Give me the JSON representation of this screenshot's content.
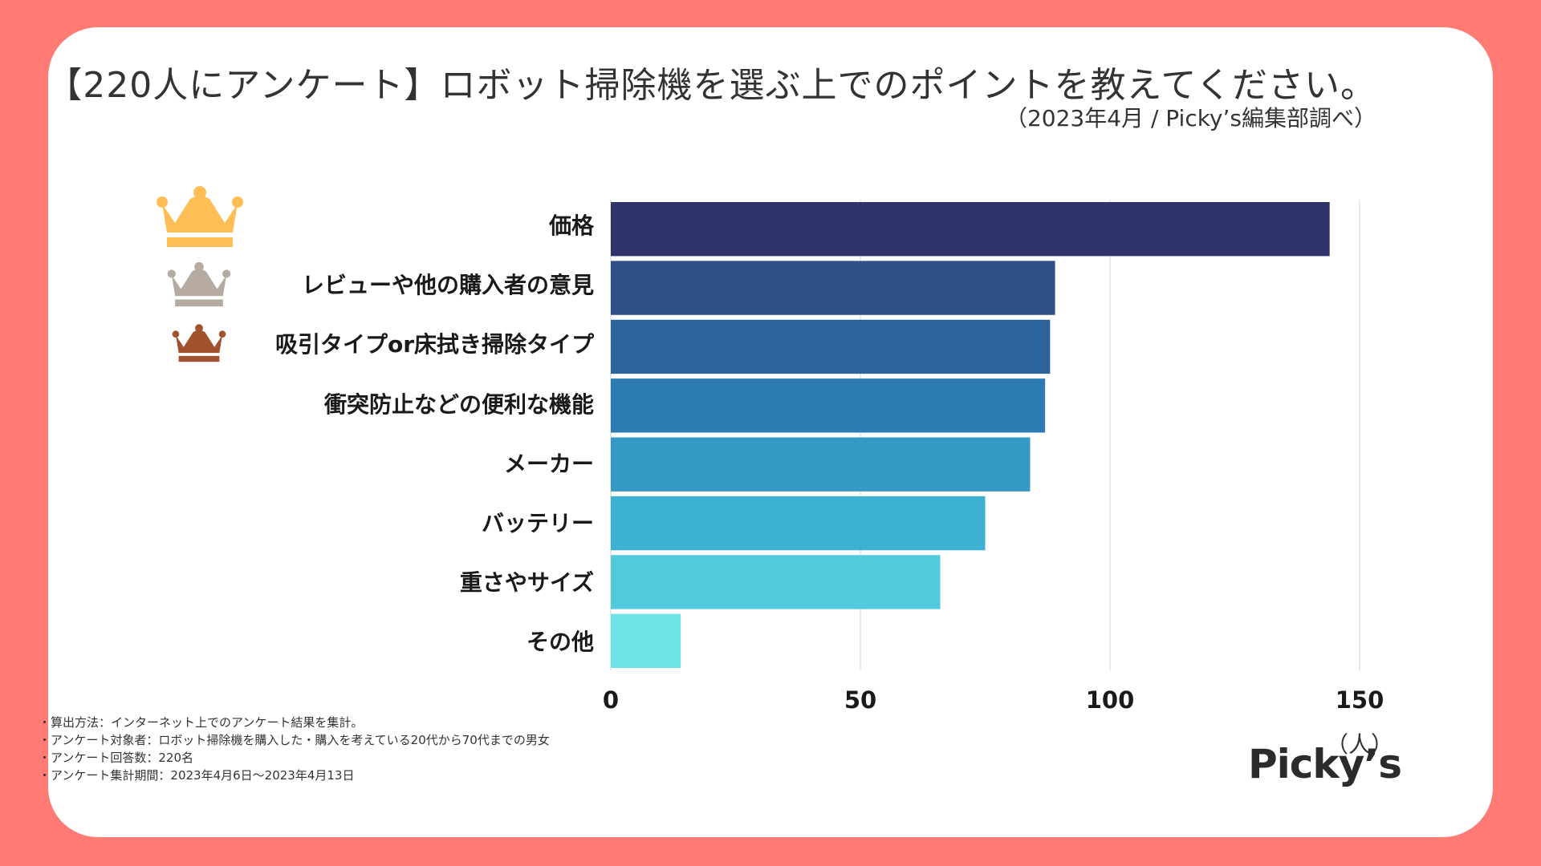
{
  "page": {
    "title": "【220人にアンケート】ロボット掃除機を選ぶ上でのポイントを教えてください。",
    "subtitle": "（2023年4月 / Picky’s編集部調べ）",
    "brand": "Picky’s",
    "notes": [
      "・算出方法：インターネット上でのアンケート結果を集計。",
      "・アンケート対象者：ロボット掃除機を購入した・購入を考えている20代から70代までの男女",
      "・アンケート回答数：220名",
      "・アンケート集計期間：2023年4月6日〜2023年4月13日"
    ],
    "colors": {
      "background": "#FF7B73",
      "gold": "#FFBE55",
      "silver": "#B5ABA1",
      "bronze": "#A0522D"
    }
  },
  "chart_data": {
    "type": "bar",
    "orientation": "horizontal",
    "title": "【220人にアンケート】ロボット掃除機を選ぶ上でのポイントを教えてください。",
    "categories": [
      "価格",
      "レビューや他の購入者の意見",
      "吸引タイプor床拭き掃除タイプ",
      "衝突防止などの便利な機能",
      "メーカー",
      "バッテリー",
      "重さやサイズ",
      "その他"
    ],
    "values": [
      144,
      89,
      88,
      87,
      84,
      75,
      66,
      14
    ],
    "bar_colors": [
      "#31336B",
      "#2F4F89",
      "#2D639B",
      "#2C7CB3",
      "#3599C6",
      "#3DB1D1",
      "#51CADC",
      "#6CE3E6"
    ],
    "xlim": [
      0,
      150
    ],
    "xticks": [
      0,
      50,
      100,
      150
    ],
    "xticklabels": [
      "0",
      "50",
      "100",
      "150"
    ],
    "xlabel": "（人）",
    "grid": true
  }
}
